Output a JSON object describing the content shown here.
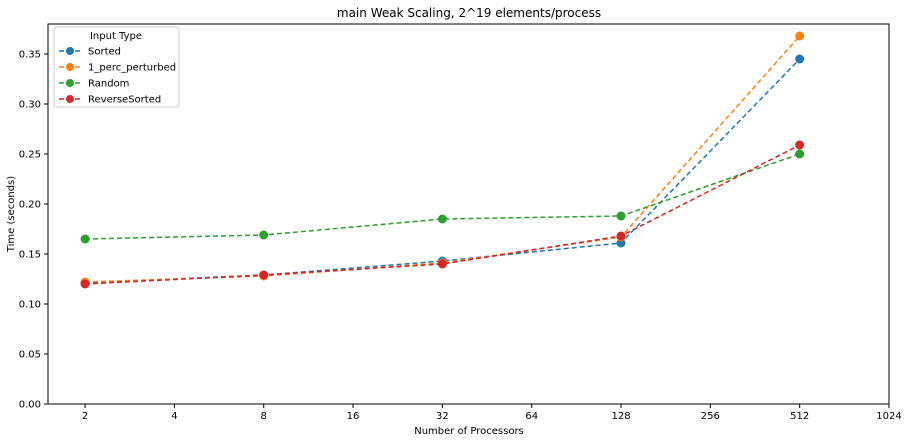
{
  "chart_data": {
    "type": "line",
    "title": "main Weak Scaling, 2^19 elements/process",
    "xlabel": "Number of Processors",
    "ylabel": "Time (seconds)",
    "x_scale": "log2",
    "xlim": [
      1.5,
      1024
    ],
    "ylim": [
      0,
      0.38
    ],
    "x_ticks": [
      2,
      4,
      8,
      16,
      32,
      64,
      128,
      256,
      512,
      1024
    ],
    "x_tick_labels": [
      "2",
      "4",
      "8",
      "16",
      "32",
      "64",
      "128",
      "256",
      "512",
      "1024"
    ],
    "y_ticks": [
      0,
      0.05,
      0.1,
      0.15,
      0.2,
      0.25,
      0.3,
      0.35
    ],
    "y_tick_labels": [
      "0.00",
      "0.05",
      "0.10",
      "0.15",
      "0.20",
      "0.25",
      "0.30",
      "0.35"
    ],
    "grid": false,
    "legend": {
      "title": "Input Type",
      "placement": "top-left"
    },
    "x": [
      2,
      8,
      32,
      128,
      512
    ],
    "series": [
      {
        "name": "Sorted",
        "color": "#1f77b4",
        "values": [
          0.121,
          0.129,
          0.143,
          0.161,
          0.345
        ]
      },
      {
        "name": "1_perc_perturbed",
        "color": "#ff7f0e",
        "values": [
          0.122,
          0.128,
          0.141,
          0.167,
          0.368
        ]
      },
      {
        "name": "Random",
        "color": "#2ca02c",
        "values": [
          0.165,
          0.169,
          0.185,
          0.188,
          0.25
        ]
      },
      {
        "name": "ReverseSorted",
        "color": "#d62728",
        "values": [
          0.12,
          0.129,
          0.14,
          0.168,
          0.259
        ]
      }
    ]
  }
}
